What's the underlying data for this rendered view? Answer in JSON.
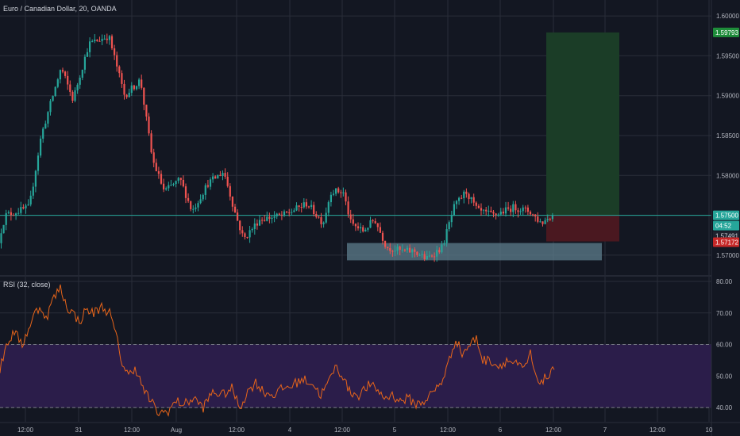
{
  "symbol_title": "Euro / Canadian Dollar, 20, OANDA",
  "rsi_label": "RSI (32, close)",
  "colors": {
    "background": "#131722",
    "grid": "#2a2e39",
    "up": "#26a69a",
    "down": "#ef5350",
    "rsi_line": "#e8651a",
    "rsi_band": "#2b1d4a",
    "target_zone": "#1b3d27",
    "stop_zone": "#4a1820",
    "demand_zone": "#5d7e8c",
    "price_line": "#26a69a",
    "target_tag": "#1e8c3a",
    "stop_tag": "#c62828"
  },
  "chart_data": [
    {
      "type": "candlestick",
      "title": "Euro / Canadian Dollar, 20, OANDA",
      "x_ticks": [
        "12:00",
        "31",
        "12:00",
        "Aug",
        "12:00",
        "4",
        "12:00",
        "5",
        "12:00",
        "6",
        "12:00",
        "7",
        "12:00",
        "10"
      ],
      "y_ticks": [
        "1.60000",
        "1.59500",
        "1.59000",
        "1.58500",
        "1.58000",
        "1.57500",
        "1.57000"
      ],
      "ylim": [
        1.5675,
        1.602
      ],
      "price_tags": [
        {
          "label": "1.59793",
          "value": 1.59793,
          "role": "target"
        },
        {
          "label": "1.57500",
          "value": 1.575,
          "role": "last-price"
        },
        {
          "label": "04:52",
          "role": "countdown"
        },
        {
          "label": "1.57491",
          "value": 1.57491,
          "role": "entry"
        },
        {
          "label": "1.57172",
          "value": 1.57172,
          "role": "stop"
        }
      ],
      "anchors": [
        [
          0,
          1.5715
        ],
        [
          10,
          1.575
        ],
        [
          40,
          1.576
        ],
        [
          55,
          1.585
        ],
        [
          80,
          1.5935
        ],
        [
          95,
          1.5895
        ],
        [
          115,
          1.5965
        ],
        [
          140,
          1.5975
        ],
        [
          160,
          1.59
        ],
        [
          180,
          1.592
        ],
        [
          195,
          1.582
        ],
        [
          210,
          1.578
        ],
        [
          230,
          1.5795
        ],
        [
          245,
          1.5755
        ],
        [
          265,
          1.579
        ],
        [
          285,
          1.5805
        ],
        [
          300,
          1.575
        ],
        [
          310,
          1.572
        ],
        [
          330,
          1.5745
        ],
        [
          360,
          1.575
        ],
        [
          390,
          1.5765
        ],
        [
          410,
          1.574
        ],
        [
          420,
          1.578
        ],
        [
          435,
          1.578
        ],
        [
          445,
          1.574
        ],
        [
          460,
          1.573
        ],
        [
          475,
          1.5745
        ],
        [
          490,
          1.571
        ],
        [
          510,
          1.5705
        ],
        [
          525,
          1.5705
        ],
        [
          540,
          1.5695
        ],
        [
          560,
          1.571
        ],
        [
          575,
          1.576
        ],
        [
          590,
          1.578
        ],
        [
          605,
          1.5755
        ],
        [
          625,
          1.575
        ],
        [
          650,
          1.576
        ],
        [
          670,
          1.5755
        ],
        [
          685,
          1.574
        ],
        [
          697,
          1.575
        ]
      ],
      "zones": [
        {
          "name": "demand-zone",
          "x_from": 437,
          "x_to": 758,
          "y_from": 1.56935,
          "y_to": 1.57152
        },
        {
          "name": "target-zone",
          "x_from": 688,
          "x_to": 780,
          "y_from": 1.575,
          "y_to": 1.59793
        },
        {
          "name": "stop-zone",
          "x_from": 688,
          "x_to": 780,
          "y_from": 1.57172,
          "y_to": 1.575
        }
      ],
      "last_price": 1.575
    },
    {
      "type": "line",
      "title": "RSI (32, close)",
      "y_ticks": [
        "80.00",
        "70.00",
        "60.00",
        "50.00",
        "40.00"
      ],
      "ylim": [
        35.5,
        81.5
      ],
      "bands": [
        40,
        60
      ],
      "points": [
        [
          0,
          52
        ],
        [
          8,
          60
        ],
        [
          18,
          64
        ],
        [
          28,
          60
        ],
        [
          36,
          65
        ],
        [
          44,
          70
        ],
        [
          52,
          72
        ],
        [
          58,
          68
        ],
        [
          66,
          74
        ],
        [
          76,
          78
        ],
        [
          84,
          72
        ],
        [
          92,
          70
        ],
        [
          100,
          67
        ],
        [
          108,
          71
        ],
        [
          118,
          70
        ],
        [
          128,
          72
        ],
        [
          138,
          70
        ],
        [
          146,
          63
        ],
        [
          154,
          54
        ],
        [
          162,
          50
        ],
        [
          170,
          53
        ],
        [
          180,
          46
        ],
        [
          190,
          42
        ],
        [
          200,
          38
        ],
        [
          212,
          39
        ],
        [
          222,
          42
        ],
        [
          232,
          41
        ],
        [
          244,
          43
        ],
        [
          256,
          40
        ],
        [
          268,
          45
        ],
        [
          280,
          44
        ],
        [
          292,
          46
        ],
        [
          302,
          40
        ],
        [
          312,
          45
        ],
        [
          322,
          48
        ],
        [
          332,
          45
        ],
        [
          344,
          44
        ],
        [
          356,
          46
        ],
        [
          368,
          47
        ],
        [
          380,
          49
        ],
        [
          392,
          48
        ],
        [
          404,
          44
        ],
        [
          414,
          48
        ],
        [
          422,
          53
        ],
        [
          432,
          50
        ],
        [
          440,
          45
        ],
        [
          452,
          44
        ],
        [
          464,
          47
        ],
        [
          474,
          46
        ],
        [
          484,
          43
        ],
        [
          494,
          44
        ],
        [
          504,
          42
        ],
        [
          514,
          43
        ],
        [
          524,
          41
        ],
        [
          534,
          42
        ],
        [
          546,
          45
        ],
        [
          556,
          48
        ],
        [
          566,
          55
        ],
        [
          574,
          62
        ],
        [
          582,
          57
        ],
        [
          592,
          60
        ],
        [
          600,
          62
        ],
        [
          608,
          55
        ],
        [
          618,
          55
        ],
        [
          628,
          53
        ],
        [
          638,
          55
        ],
        [
          648,
          54
        ],
        [
          660,
          52
        ],
        [
          668,
          57
        ],
        [
          676,
          48
        ],
        [
          684,
          49
        ],
        [
          692,
          50
        ],
        [
          698,
          52
        ]
      ]
    }
  ]
}
